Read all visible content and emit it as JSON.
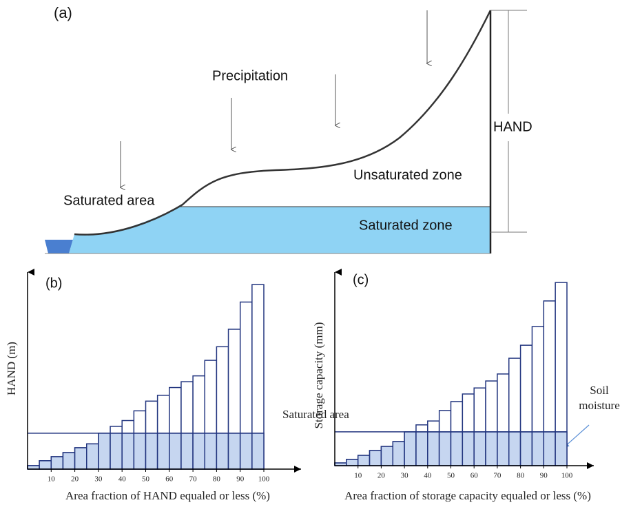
{
  "panel_a": {
    "label": "(a)",
    "precipitation": "Precipitation",
    "saturated_area": "Saturated area",
    "unsaturated_zone": "Unsaturated zone",
    "saturated_zone": "Saturated zone",
    "hand": "HAND"
  },
  "chart_data": [
    {
      "type": "histogram",
      "panel_label": "(b)",
      "y_label": "HAND (m)",
      "x_label": "Area fraction of HAND equaled or less (%)",
      "bins": [
        0,
        5,
        10,
        15,
        20,
        25,
        30,
        35,
        40,
        45,
        50,
        55,
        60,
        65,
        70,
        75,
        80,
        85,
        90,
        95,
        100
      ],
      "values": [
        1.8,
        4.3,
        6.4,
        8.5,
        11,
        13,
        18.5,
        22,
        25,
        30,
        35,
        38,
        42,
        45,
        48,
        56,
        63,
        72,
        86,
        95
      ],
      "saturated_level": 18.5,
      "xlim": [
        0,
        100
      ],
      "ylim": [
        0,
        100
      ],
      "xticks": [
        10,
        20,
        30,
        40,
        50,
        60,
        70,
        80,
        90,
        100
      ],
      "color": "#c6d6f0",
      "edge_color": "#22357f"
    },
    {
      "type": "histogram",
      "panel_label": "(c)",
      "y_label": "Storage capacity (mm)",
      "x_label": "Area fraction of storage capacity equaled or less (%)",
      "bins": [
        0,
        5,
        10,
        15,
        20,
        25,
        30,
        35,
        40,
        45,
        50,
        55,
        60,
        65,
        70,
        75,
        80,
        85,
        90,
        95,
        100
      ],
      "values": [
        1.4,
        3.2,
        5.3,
        7.8,
        9.9,
        12.4,
        17.4,
        21,
        23,
        28.4,
        33,
        36.9,
        40,
        43.6,
        47.2,
        55.3,
        62,
        71.6,
        84.8,
        94.3
      ],
      "saturated_level": 17.4,
      "xlim": [
        0,
        100
      ],
      "ylim": [
        0,
        100
      ],
      "xticks": [
        10,
        20,
        30,
        40,
        50,
        60,
        70,
        80,
        90,
        100
      ],
      "color": "#c6d6f0",
      "edge_color": "#22357f",
      "annotations": {
        "saturated_area": "Saturated area",
        "soil_moisture": "Soil moisture"
      }
    }
  ]
}
